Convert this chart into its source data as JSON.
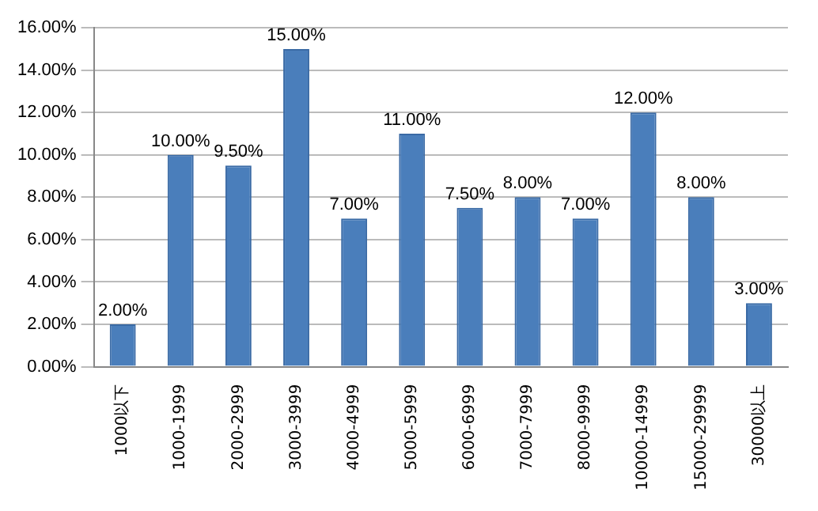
{
  "chart_data": {
    "type": "bar",
    "categories": [
      "1000以下",
      "1000-1999",
      "2000-2999",
      "3000-3999",
      "4000-4999",
      "5000-5999",
      "6000-6999",
      "7000-7999",
      "8000-9999",
      "10000-14999",
      "15000-29999",
      "30000以上"
    ],
    "values": [
      2,
      10,
      9.5,
      15,
      7,
      11,
      7.5,
      8,
      7,
      12,
      8,
      3
    ],
    "value_labels": [
      "2.00%",
      "10.00%",
      "9.50%",
      "15.00%",
      "7.00%",
      "11.00%",
      "7.50%",
      "8.00%",
      "7.00%",
      "12.00%",
      "8.00%",
      "3.00%"
    ],
    "color": "#4a7ebb",
    "ylim": [
      0,
      16
    ],
    "yticks": [
      {
        "value": 0,
        "label": "0.00%"
      },
      {
        "value": 2,
        "label": "2.00%"
      },
      {
        "value": 4,
        "label": "4.00%"
      },
      {
        "value": 6,
        "label": "6.00%"
      },
      {
        "value": 8,
        "label": "8.00%"
      },
      {
        "value": 10,
        "label": "10.00%"
      },
      {
        "value": 12,
        "label": "12.00%"
      },
      {
        "value": 14,
        "label": "14.00%"
      },
      {
        "value": 16,
        "label": "16.00%"
      }
    ],
    "grid": "y"
  }
}
